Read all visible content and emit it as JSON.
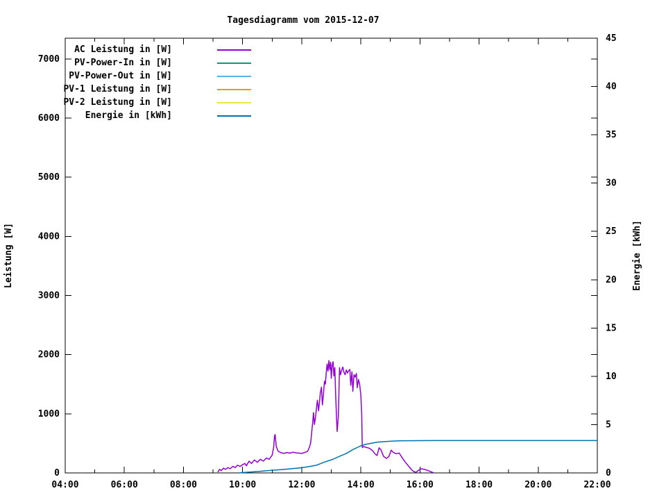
{
  "title": "Tagesdiagramm vom 2015-12-07",
  "chart_data": {
    "type": "line",
    "title": "Tagesdiagramm vom 2015-12-07",
    "background": "#ffffff",
    "border_color": "#000000",
    "legend_position": "top-left-inside",
    "x_axis": {
      "label": "",
      "range_hours": [
        4,
        22
      ],
      "major_ticks": [
        {
          "hour": 4,
          "label": "04:00"
        },
        {
          "hour": 6,
          "label": "06:00"
        },
        {
          "hour": 8,
          "label": "08:00"
        },
        {
          "hour": 10,
          "label": "10:00"
        },
        {
          "hour": 12,
          "label": "12:00"
        },
        {
          "hour": 14,
          "label": "14:00"
        },
        {
          "hour": 16,
          "label": "16:00"
        },
        {
          "hour": 18,
          "label": "18:00"
        },
        {
          "hour": 20,
          "label": "20:00"
        },
        {
          "hour": 22,
          "label": "22:00"
        }
      ],
      "minor_tick_hours": [
        5,
        7,
        9,
        11,
        13,
        15,
        17,
        19,
        21
      ]
    },
    "y_axis": {
      "label": "Leistung [W]",
      "range": [
        0,
        7350
      ],
      "ticks": [
        0,
        1000,
        2000,
        3000,
        4000,
        5000,
        6000,
        7000
      ]
    },
    "y2_axis": {
      "label": "Energie [kWh]",
      "range": [
        0,
        45
      ],
      "ticks": [
        0,
        5,
        10,
        15,
        20,
        25,
        30,
        35,
        40,
        45
      ]
    },
    "series": [
      {
        "name": "AC Leistung in [W]",
        "color": "#9400d3",
        "axis": "y",
        "points": [
          [
            9.17,
            20
          ],
          [
            9.22,
            60
          ],
          [
            9.28,
            40
          ],
          [
            9.35,
            80
          ],
          [
            9.42,
            60
          ],
          [
            9.5,
            90
          ],
          [
            9.58,
            70
          ],
          [
            9.67,
            110
          ],
          [
            9.75,
            90
          ],
          [
            9.83,
            130
          ],
          [
            9.92,
            110
          ],
          [
            10.0,
            140
          ],
          [
            10.08,
            160
          ],
          [
            10.13,
            120
          ],
          [
            10.22,
            200
          ],
          [
            10.3,
            160
          ],
          [
            10.4,
            220
          ],
          [
            10.5,
            180
          ],
          [
            10.6,
            230
          ],
          [
            10.7,
            200
          ],
          [
            10.8,
            250
          ],
          [
            10.9,
            230
          ],
          [
            11.0,
            300
          ],
          [
            11.05,
            430
          ],
          [
            11.08,
            620
          ],
          [
            11.1,
            650
          ],
          [
            11.14,
            450
          ],
          [
            11.2,
            370
          ],
          [
            11.3,
            340
          ],
          [
            11.4,
            330
          ],
          [
            11.5,
            345
          ],
          [
            11.6,
            335
          ],
          [
            11.7,
            350
          ],
          [
            11.8,
            340
          ],
          [
            11.9,
            335
          ],
          [
            12.0,
            330
          ],
          [
            12.1,
            345
          ],
          [
            12.2,
            365
          ],
          [
            12.25,
            420
          ],
          [
            12.3,
            500
          ],
          [
            12.33,
            650
          ],
          [
            12.37,
            850
          ],
          [
            12.4,
            1020
          ],
          [
            12.43,
            820
          ],
          [
            12.47,
            950
          ],
          [
            12.5,
            1100
          ],
          [
            12.53,
            1230
          ],
          [
            12.57,
            1050
          ],
          [
            12.6,
            1200
          ],
          [
            12.63,
            1350
          ],
          [
            12.67,
            1450
          ],
          [
            12.7,
            1150
          ],
          [
            12.73,
            1300
          ],
          [
            12.77,
            1550
          ],
          [
            12.8,
            1500
          ],
          [
            12.83,
            1700
          ],
          [
            12.86,
            1840
          ],
          [
            12.89,
            1720
          ],
          [
            12.92,
            1900
          ],
          [
            12.95,
            1750
          ],
          [
            12.98,
            1870
          ],
          [
            13.0,
            1600
          ],
          [
            13.03,
            1820
          ],
          [
            13.06,
            1880
          ],
          [
            13.09,
            1640
          ],
          [
            13.12,
            1780
          ],
          [
            13.15,
            1300
          ],
          [
            13.18,
            900
          ],
          [
            13.2,
            700
          ],
          [
            13.24,
            950
          ],
          [
            13.28,
            1780
          ],
          [
            13.31,
            1660
          ],
          [
            13.35,
            1730
          ],
          [
            13.39,
            1790
          ],
          [
            13.43,
            1700
          ],
          [
            13.47,
            1660
          ],
          [
            13.51,
            1740
          ],
          [
            13.55,
            1690
          ],
          [
            13.59,
            1730
          ],
          [
            13.63,
            1750
          ],
          [
            13.66,
            1480
          ],
          [
            13.7,
            1710
          ],
          [
            13.73,
            1380
          ],
          [
            13.77,
            1660
          ],
          [
            13.81,
            1620
          ],
          [
            13.85,
            1680
          ],
          [
            13.88,
            1440
          ],
          [
            13.92,
            1580
          ],
          [
            13.96,
            1500
          ],
          [
            14.0,
            1320
          ],
          [
            14.03,
            990
          ],
          [
            14.05,
            430
          ],
          [
            14.1,
            445
          ],
          [
            14.2,
            430
          ],
          [
            14.3,
            415
          ],
          [
            14.4,
            375
          ],
          [
            14.48,
            320
          ],
          [
            14.55,
            295
          ],
          [
            14.62,
            425
          ],
          [
            14.68,
            390
          ],
          [
            14.77,
            280
          ],
          [
            14.87,
            245
          ],
          [
            14.95,
            280
          ],
          [
            15.03,
            385
          ],
          [
            15.1,
            345
          ],
          [
            15.2,
            325
          ],
          [
            15.3,
            335
          ],
          [
            15.4,
            255
          ],
          [
            15.5,
            185
          ],
          [
            15.6,
            125
          ],
          [
            15.7,
            65
          ],
          [
            15.78,
            25
          ],
          [
            15.87,
            10
          ],
          [
            15.95,
            45
          ],
          [
            16.05,
            70
          ],
          [
            16.15,
            60
          ],
          [
            16.25,
            45
          ],
          [
            16.35,
            25
          ],
          [
            16.45,
            5
          ]
        ]
      },
      {
        "name": "PV-Power-In in [W]",
        "color": "#009e73",
        "axis": "y",
        "points": []
      },
      {
        "name": "PV-Power-Out in [W]",
        "color": "#56b4e9",
        "axis": "y",
        "points": []
      },
      {
        "name": "PV-1 Leistung in [W]",
        "color": "#e69f00",
        "axis": "y",
        "points": []
      },
      {
        "name": "PV-2 Leistung in [W]",
        "color": "#f0e442",
        "axis": "y",
        "points": []
      },
      {
        "name": "Energie in [kWh]",
        "color": "#0072b2",
        "axis": "y2",
        "points": [
          [
            9.9,
            0.02
          ],
          [
            10.2,
            0.08
          ],
          [
            10.55,
            0.15
          ],
          [
            10.9,
            0.25
          ],
          [
            11.35,
            0.35
          ],
          [
            11.7,
            0.45
          ],
          [
            12.05,
            0.55
          ],
          [
            12.3,
            0.68
          ],
          [
            12.5,
            0.8
          ],
          [
            12.75,
            1.1
          ],
          [
            13.05,
            1.4
          ],
          [
            13.3,
            1.75
          ],
          [
            13.5,
            2.0
          ],
          [
            13.75,
            2.45
          ],
          [
            14.0,
            2.8
          ],
          [
            14.15,
            2.95
          ],
          [
            14.4,
            3.1
          ],
          [
            14.6,
            3.2
          ],
          [
            15.0,
            3.28
          ],
          [
            15.3,
            3.32
          ],
          [
            16.0,
            3.34
          ],
          [
            16.5,
            3.35
          ],
          [
            22.0,
            3.35
          ]
        ]
      }
    ]
  }
}
